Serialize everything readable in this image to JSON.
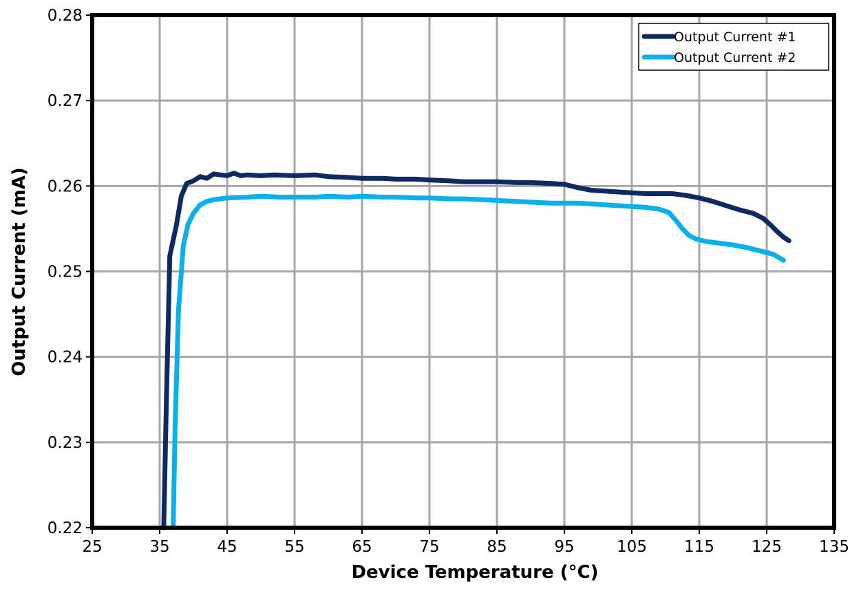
{
  "chart_data": {
    "type": "line",
    "title": "",
    "xlabel": "Device Temperature (°C)",
    "ylabel": "Output Current (mA)",
    "xlim": [
      25,
      135
    ],
    "ylim": [
      0.22,
      0.28
    ],
    "x_ticks": [
      25,
      35,
      45,
      55,
      65,
      75,
      85,
      95,
      105,
      115,
      125,
      135
    ],
    "x_tick_labels": [
      "25",
      "35",
      "45",
      "55",
      "65",
      "75",
      "85",
      "95",
      "105",
      "115",
      "125",
      "135"
    ],
    "y_ticks": [
      0.22,
      0.23,
      0.24,
      0.25,
      0.26,
      0.27,
      0.28
    ],
    "y_tick_labels": [
      "0.22",
      "0.23",
      "0.24",
      "0.25",
      "0.26",
      "0.27",
      "0.28"
    ],
    "grid": true,
    "legend_position": "top-right",
    "series": [
      {
        "name": "Output Current #1",
        "color": "#0d2a63",
        "points": [
          [
            35.6,
            0.22
          ],
          [
            36.0,
            0.235
          ],
          [
            36.5,
            0.2518
          ],
          [
            37.5,
            0.2555
          ],
          [
            38.2,
            0.2588
          ],
          [
            39.0,
            0.2603
          ],
          [
            40.0,
            0.2606
          ],
          [
            41.0,
            0.2611
          ],
          [
            42.0,
            0.2609
          ],
          [
            43.0,
            0.2614
          ],
          [
            44.0,
            0.2613
          ],
          [
            45.0,
            0.2612
          ],
          [
            46.0,
            0.2615
          ],
          [
            47.0,
            0.2612
          ],
          [
            48.0,
            0.2613
          ],
          [
            50.0,
            0.2612
          ],
          [
            52.0,
            0.2613
          ],
          [
            55.0,
            0.2612
          ],
          [
            58.0,
            0.2613
          ],
          [
            60.0,
            0.2611
          ],
          [
            63.0,
            0.261
          ],
          [
            65.0,
            0.2609
          ],
          [
            68.0,
            0.2609
          ],
          [
            70.0,
            0.2608
          ],
          [
            73.0,
            0.2608
          ],
          [
            75.0,
            0.2607
          ],
          [
            78.0,
            0.2606
          ],
          [
            80.0,
            0.2605
          ],
          [
            83.0,
            0.2605
          ],
          [
            85.0,
            0.2605
          ],
          [
            88.0,
            0.2604
          ],
          [
            90.0,
            0.2604
          ],
          [
            93.0,
            0.2603
          ],
          [
            95.0,
            0.2602
          ],
          [
            97.0,
            0.2598
          ],
          [
            99.0,
            0.2595
          ],
          [
            101.0,
            0.2594
          ],
          [
            103.0,
            0.2593
          ],
          [
            105.0,
            0.2592
          ],
          [
            107.0,
            0.2591
          ],
          [
            109.0,
            0.2591
          ],
          [
            111.0,
            0.2591
          ],
          [
            113.0,
            0.2589
          ],
          [
            115.0,
            0.2586
          ],
          [
            117.0,
            0.2582
          ],
          [
            119.0,
            0.2577
          ],
          [
            121.0,
            0.2572
          ],
          [
            123.0,
            0.2568
          ],
          [
            124.5,
            0.2562
          ],
          [
            125.5,
            0.2555
          ],
          [
            126.5,
            0.2547
          ],
          [
            127.5,
            0.254
          ],
          [
            128.3,
            0.2536
          ]
        ]
      },
      {
        "name": "Output Current #2",
        "color": "#0ab0ea",
        "points": [
          [
            37.0,
            0.22
          ],
          [
            37.3,
            0.232
          ],
          [
            37.8,
            0.2455
          ],
          [
            38.5,
            0.253
          ],
          [
            39.2,
            0.2555
          ],
          [
            40.0,
            0.2568
          ],
          [
            41.0,
            0.2578
          ],
          [
            42.0,
            0.2582
          ],
          [
            43.0,
            0.2584
          ],
          [
            45.0,
            0.2586
          ],
          [
            48.0,
            0.2587
          ],
          [
            50.0,
            0.2588
          ],
          [
            53.0,
            0.2587
          ],
          [
            55.0,
            0.2587
          ],
          [
            58.0,
            0.2587
          ],
          [
            60.0,
            0.2588
          ],
          [
            63.0,
            0.2587
          ],
          [
            65.0,
            0.2588
          ],
          [
            68.0,
            0.2587
          ],
          [
            70.0,
            0.2587
          ],
          [
            73.0,
            0.2586
          ],
          [
            75.0,
            0.2586
          ],
          [
            78.0,
            0.2585
          ],
          [
            80.0,
            0.2585
          ],
          [
            83.0,
            0.2584
          ],
          [
            85.0,
            0.2583
          ],
          [
            88.0,
            0.2582
          ],
          [
            90.0,
            0.2581
          ],
          [
            93.0,
            0.258
          ],
          [
            95.0,
            0.258
          ],
          [
            97.0,
            0.258
          ],
          [
            99.0,
            0.2579
          ],
          [
            101.0,
            0.2578
          ],
          [
            103.0,
            0.2577
          ],
          [
            105.0,
            0.2576
          ],
          [
            107.0,
            0.2575
          ],
          [
            109.0,
            0.2573
          ],
          [
            110.5,
            0.2569
          ],
          [
            111.5,
            0.256
          ],
          [
            112.5,
            0.255
          ],
          [
            113.5,
            0.2542
          ],
          [
            114.5,
            0.2538
          ],
          [
            116.0,
            0.2535
          ],
          [
            118.0,
            0.2533
          ],
          [
            120.0,
            0.2531
          ],
          [
            122.0,
            0.2528
          ],
          [
            124.0,
            0.2524
          ],
          [
            126.0,
            0.252
          ],
          [
            127.5,
            0.2513
          ]
        ]
      }
    ]
  }
}
